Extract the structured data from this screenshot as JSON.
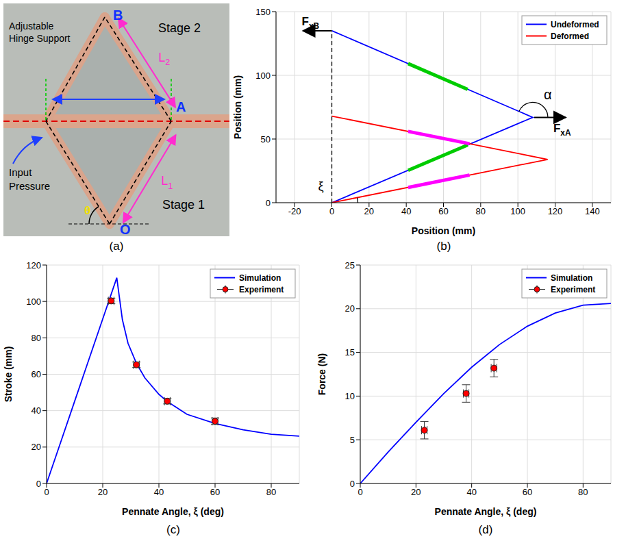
{
  "diagram": {
    "panel_label": "(a)",
    "labels": {
      "stage_2": "Stage 2",
      "stage_1": "Stage 1",
      "hinge": "Adjustable Hinge Support",
      "pressure": "Input Pressure",
      "theta": "θ",
      "B": "B",
      "A": "A",
      "O": "O",
      "L1": "L1",
      "L2": "L2"
    }
  },
  "chart_data": [
    {
      "type": "line",
      "panel_label": "(b)",
      "xlabel": "Position (mm)",
      "ylabel": "Position (mm)",
      "xlim": [
        -30,
        150
      ],
      "xticks": [
        -20,
        0,
        20,
        40,
        60,
        80,
        100,
        120,
        140
      ],
      "ylim": [
        0,
        150
      ],
      "yticks": [
        0,
        50,
        100,
        150
      ],
      "grid": true,
      "legend": "upper right",
      "annotations": [
        "FxB",
        "FxA",
        "α",
        "ξ"
      ],
      "series": [
        {
          "name": "Undeformed",
          "color": "#0000ff",
          "x": [
            0,
            108,
            0
          ],
          "values": [
            0,
            67,
            135
          ]
        },
        {
          "name": "Deformed",
          "color": "#ff0000",
          "x": [
            0,
            116,
            0
          ],
          "values": [
            0,
            34,
            68
          ]
        },
        {
          "color": "#000000",
          "line_style": "dashed",
          "x": [
            0,
            0
          ],
          "values": [
            0,
            135
          ]
        },
        {
          "color": "#00cc00",
          "x": [
            41,
            73
          ],
          "values": [
            25.4,
            45.3
          ]
        },
        {
          "color": "#00cc00",
          "x": [
            41,
            73
          ],
          "values": [
            109.2,
            89.0
          ]
        },
        {
          "color": "#ff00ff",
          "x": [
            41,
            74
          ],
          "values": [
            12.0,
            21.7
          ]
        },
        {
          "color": "#ff00ff",
          "x": [
            41,
            74
          ],
          "values": [
            56.0,
            46.3
          ]
        }
      ]
    },
    {
      "type": "line",
      "panel_label": "(c)",
      "xlabel": "Pennate Angle, ξ (deg)",
      "ylabel": "Stroke (mm)",
      "xlim": [
        0,
        90
      ],
      "xticks": [
        0,
        20,
        40,
        60,
        80
      ],
      "ylim": [
        0,
        120
      ],
      "yticks": [
        0,
        20,
        40,
        60,
        80,
        100,
        120
      ],
      "grid": true,
      "legend": "upper right",
      "series": [
        {
          "name": "Simulation",
          "type": "line",
          "color": "#0000ff",
          "x": [
            0,
            5,
            10,
            15,
            20,
            25,
            27,
            29,
            32,
            35,
            40,
            43,
            50,
            60,
            70,
            80,
            90
          ],
          "values": [
            0,
            22.6,
            45.2,
            67.8,
            90.4,
            113,
            90,
            77,
            66,
            58,
            49,
            45,
            38,
            33,
            29.5,
            27,
            26
          ]
        },
        {
          "name": "Experiment",
          "type": "scatter",
          "color": "#ff0000",
          "marker": "circle",
          "x": [
            23,
            32,
            43,
            60
          ],
          "values": [
            100.3,
            65.2,
            45.2,
            34.2
          ],
          "x_err": [
            1,
            1,
            1,
            1
          ],
          "y_err": [
            1.5,
            1.5,
            1.5,
            1.8
          ]
        }
      ]
    },
    {
      "type": "line",
      "panel_label": "(d)",
      "xlabel": "Pennate Angle, ξ (deg)",
      "ylabel": "Force (N)",
      "xlim": [
        0,
        90
      ],
      "xticks": [
        0,
        20,
        40,
        60,
        80
      ],
      "ylim": [
        0,
        25
      ],
      "yticks": [
        0,
        5,
        10,
        15,
        20,
        25
      ],
      "grid": true,
      "legend": "upper right",
      "series": [
        {
          "name": "Simulation",
          "type": "line",
          "color": "#0000ff",
          "x": [
            0,
            10,
            20,
            30,
            40,
            50,
            60,
            70,
            80,
            90
          ],
          "values": [
            0,
            3.6,
            7.0,
            10.3,
            13.3,
            15.9,
            18.0,
            19.5,
            20.4,
            20.6
          ]
        },
        {
          "name": "Experiment",
          "type": "scatter",
          "color": "#ff0000",
          "marker": "circle",
          "x": [
            23,
            38,
            48
          ],
          "values": [
            6.1,
            10.3,
            13.2
          ],
          "x_err": [
            1,
            1,
            1
          ],
          "y_err": [
            1,
            1,
            1
          ]
        }
      ]
    }
  ]
}
